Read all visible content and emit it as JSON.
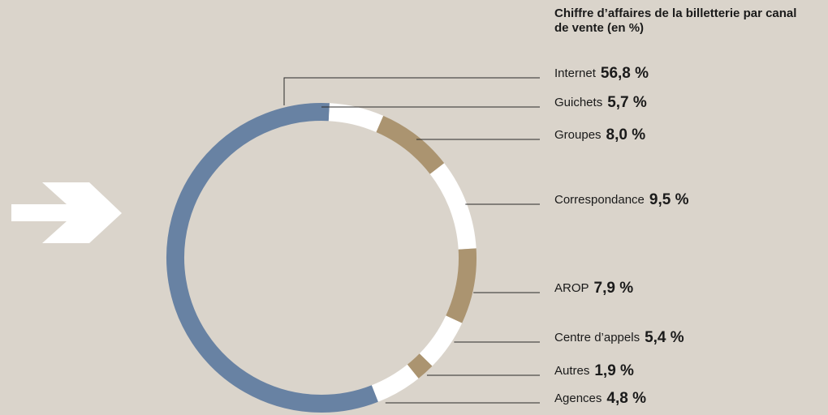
{
  "chart_data": {
    "type": "pie",
    "donut": true,
    "title": "Chiffre d’affaires de la billetterie par canal de vente (en %)",
    "categories": [
      "Internet",
      "Guichets",
      "Groupes",
      "Correspondance",
      "AROP",
      "Centre d’appels",
      "Autres",
      "Agences"
    ],
    "values": [
      56.8,
      5.7,
      8.0,
      9.5,
      7.9,
      5.4,
      1.9,
      4.8
    ],
    "value_labels": [
      "56,8 %",
      "5,7 %",
      "8,0 %",
      "9,5 %",
      "7,9 %",
      "5,4 %",
      "1,9 %",
      "4,8 %"
    ],
    "colors": [
      "#6882a3",
      "#ffffff",
      "#ab9470",
      "#ffffff",
      "#ab9470",
      "#ffffff",
      "#ab9470",
      "#ffffff"
    ]
  }
}
